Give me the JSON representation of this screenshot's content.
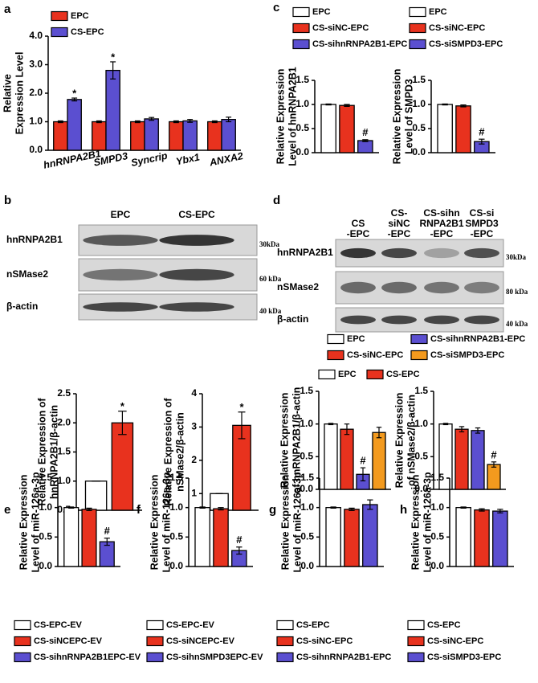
{
  "panel_letters": [
    "a",
    "b",
    "c",
    "d",
    "e",
    "f",
    "g",
    "h"
  ],
  "blots": [
    {
      "lanes": [
        [
          "EPC"
        ],
        [
          "CS-EPC"
        ]
      ],
      "rows": [
        {
          "label": "hnRNPA2B1",
          "marker": "30kDa"
        },
        {
          "label": "nSMase2",
          "marker": "60 kDa"
        },
        {
          "label": "β-actin",
          "marker": "40 kDa"
        }
      ]
    },
    {
      "lanes": [
        [
          "CS",
          "-EPC"
        ],
        [
          "CS-",
          "siNC",
          "-EPC"
        ],
        [
          "CS-sihn",
          "RNPA2B1",
          "-EPC"
        ],
        [
          "CS-si",
          "SMPD3",
          "-EPC"
        ]
      ],
      "rows": [
        {
          "label": "hnRNPA2B1",
          "marker": "30kDa"
        },
        {
          "label": "nSMase2",
          "marker": "80 kDa"
        },
        {
          "label": "β-actin",
          "marker": "40 kDa"
        }
      ]
    }
  ],
  "chart_data": [
    {
      "type": "bar",
      "ylabel": [
        "Relative",
        "Expression Level"
      ],
      "categories": [
        "hnRNPA2B1",
        "SMPD3",
        "Syncrip",
        "Ybx1",
        "ANXA2"
      ],
      "series": [
        {
          "name": "EPC",
          "color": "#e8321e",
          "values": [
            1.0,
            1.0,
            1.0,
            1.0,
            1.0
          ],
          "errors": [
            0.03,
            0.03,
            0.03,
            0.03,
            0.03
          ]
        },
        {
          "name": "CS-EPC",
          "color": "#5b4fd0",
          "values": [
            1.78,
            2.8,
            1.1,
            1.03,
            1.08
          ],
          "errors": [
            0.05,
            0.3,
            0.05,
            0.05,
            0.08
          ],
          "annotations": [
            "*",
            "*",
            null,
            null,
            null
          ]
        }
      ],
      "ylim": [
        0,
        4
      ],
      "yticks": [
        {
          "value": 0,
          "label": "0.0"
        },
        {
          "value": 1,
          "label": "1.0"
        },
        {
          "value": 2,
          "label": "2.0"
        },
        {
          "value": 3,
          "label": "3.0"
        },
        {
          "value": 4,
          "label": "4.0"
        }
      ]
    },
    {
      "type": "bar",
      "ylabel": [
        "Relative Expression of",
        "hnRNPA2B1/β-actin"
      ],
      "series": [
        {
          "name": "EPC",
          "color": "#ffffff",
          "values": [
            1.0
          ],
          "errors": [
            0
          ]
        },
        {
          "name": "CS-EPC",
          "color": "#e8321e",
          "values": [
            2.0
          ],
          "errors": [
            0.2
          ],
          "annotations": [
            "*"
          ]
        }
      ],
      "ylim": [
        0.5,
        2.5
      ],
      "yticks": [
        0.5,
        {
          "value": 1,
          "label": "1.0"
        },
        1.5,
        {
          "value": 2,
          "label": "2.0"
        },
        2.5
      ]
    },
    {
      "type": "bar",
      "ylabel": [
        "Relative Expression of",
        "nSMase2/β-actin"
      ],
      "series": [
        {
          "color": "#ffffff",
          "values": [
            1.0
          ],
          "errors": [
            0
          ]
        },
        {
          "color": "#e8321e",
          "values": [
            3.05
          ],
          "errors": [
            0.4
          ],
          "annotations": [
            "*"
          ]
        }
      ],
      "ylim": [
        0.5,
        4
      ],
      "yticks": [
        1,
        2,
        3,
        4
      ]
    },
    {
      "type": "bar",
      "ylabel": [
        "Relative Expression",
        "Level of hnRNPA2B1"
      ],
      "series": [
        {
          "name": "EPC",
          "color": "#ffffff",
          "values": [
            1.0
          ],
          "errors": [
            0.01
          ]
        },
        {
          "name": "CS-siNC-EPC",
          "color": "#e8321e",
          "values": [
            0.98
          ],
          "errors": [
            0.02
          ]
        },
        {
          "name": "CS-sihnRNPA2B1-EPC",
          "color": "#5b4fd0",
          "values": [
            0.25
          ],
          "errors": [
            0.02
          ],
          "annotations": [
            "#"
          ]
        }
      ],
      "ylim": [
        0,
        1.5
      ],
      "yticks": [
        {
          "value": 0,
          "label": "0.0"
        },
        0.5,
        {
          "value": 1,
          "label": "1.0"
        },
        1.5
      ]
    },
    {
      "type": "bar",
      "ylabel": [
        "Relative Expression",
        "Level of SMPD3"
      ],
      "series": [
        {
          "name": "EPC",
          "color": "#ffffff",
          "values": [
            1.0
          ],
          "errors": [
            0.01
          ]
        },
        {
          "name": "CS-siNC-EPC",
          "color": "#e8321e",
          "values": [
            0.97
          ],
          "errors": [
            0.02
          ]
        },
        {
          "name": "CS-siSMPD3-EPC",
          "color": "#5b4fd0",
          "values": [
            0.23
          ],
          "errors": [
            0.05
          ],
          "annotations": [
            "#"
          ]
        }
      ],
      "ylim": [
        0,
        1.5
      ],
      "yticks": [
        {
          "value": 0,
          "label": "0.0"
        },
        0.5,
        {
          "value": 1,
          "label": "1.0"
        },
        1.5
      ]
    },
    {
      "type": "bar",
      "ylabel": [
        "Relative Expression",
        "of hnRNPA2B1/β-actin"
      ],
      "series": [
        {
          "name": "EPC",
          "color": "#ffffff",
          "values": [
            1.0
          ],
          "errors": [
            0.01
          ]
        },
        {
          "name": "CS-siNC-EPC",
          "color": "#e8321e",
          "values": [
            0.92
          ],
          "errors": [
            0.08
          ]
        },
        {
          "name": "CS-sihnRNPA2B1-EPC",
          "color": "#5b4fd0",
          "values": [
            0.23
          ],
          "errors": [
            0.1
          ],
          "annotations": [
            "#"
          ]
        },
        {
          "name": "CS-siSMPD3-EPC",
          "color": "#f39a1e",
          "values": [
            0.87
          ],
          "errors": [
            0.08
          ]
        }
      ],
      "ylim": [
        0,
        1.5
      ],
      "yticks": [
        {
          "value": 0,
          "label": "0.0"
        },
        0.5,
        {
          "value": 1,
          "label": "1.0"
        },
        1.5
      ]
    },
    {
      "type": "bar",
      "ylabel": [
        "Relative Expression",
        "of nSMase2/β-actin"
      ],
      "series": [
        {
          "color": "#ffffff",
          "values": [
            1.0
          ],
          "errors": [
            0.01
          ]
        },
        {
          "color": "#e8321e",
          "values": [
            0.92
          ],
          "errors": [
            0.04
          ]
        },
        {
          "color": "#5b4fd0",
          "values": [
            0.9
          ],
          "errors": [
            0.04
          ]
        },
        {
          "color": "#f39a1e",
          "values": [
            0.38
          ],
          "errors": [
            0.04
          ],
          "annotations": [
            "#"
          ]
        }
      ],
      "ylim": [
        0,
        1.5
      ],
      "yticks": [
        {
          "value": 0,
          "label": "0.0"
        },
        0.5,
        {
          "value": 1,
          "label": "1.0"
        },
        1.5
      ]
    },
    {
      "type": "bar",
      "ylabel": [
        "Relative Expression",
        "Level of miR-126a-3p"
      ],
      "series": [
        {
          "name": "CS-EPC-EV",
          "color": "#ffffff",
          "values": [
            1.0
          ],
          "errors": [
            0.01
          ]
        },
        {
          "name": "CS-siNCEPC-EV",
          "color": "#e8321e",
          "values": [
            0.97
          ],
          "errors": [
            0.02
          ]
        },
        {
          "name": "CS-sihnRNPA2B1EPC-EV",
          "color": "#5b4fd0",
          "values": [
            0.42
          ],
          "errors": [
            0.06
          ],
          "annotations": [
            "#"
          ]
        }
      ],
      "ylim": [
        0,
        1.5
      ],
      "yticks": [
        {
          "value": 0,
          "label": "0.0"
        },
        0.5,
        {
          "value": 1,
          "label": "1.0"
        },
        1.5
      ]
    },
    {
      "type": "bar",
      "ylabel": [
        "Relative Expression",
        "Level of miR-126a-3p"
      ],
      "series": [
        {
          "name": "CS-EPC-EV",
          "color": "#ffffff",
          "values": [
            1.0
          ],
          "errors": [
            0.01
          ]
        },
        {
          "name": "CS-siNCEPC-EV",
          "color": "#e8321e",
          "values": [
            0.98
          ],
          "errors": [
            0.02
          ]
        },
        {
          "name": "CS-sihnSMPD3EPC-EV",
          "color": "#5b4fd0",
          "values": [
            0.27
          ],
          "errors": [
            0.06
          ],
          "annotations": [
            "#"
          ]
        }
      ],
      "ylim": [
        0,
        1.5
      ],
      "yticks": [
        {
          "value": 0,
          "label": "0.0"
        },
        0.5,
        {
          "value": 1,
          "label": "1.0"
        },
        1.5
      ]
    },
    {
      "type": "bar",
      "ylabel": [
        "Relative Expression",
        "Level of miR-126a-3p"
      ],
      "series": [
        {
          "name": "CS-EPC",
          "color": "#ffffff",
          "values": [
            1.0
          ],
          "errors": [
            0.01
          ]
        },
        {
          "name": "CS-siNC-EPC",
          "color": "#e8321e",
          "values": [
            0.97
          ],
          "errors": [
            0.02
          ]
        },
        {
          "name": "CS-sihnRNPA2B1-EPC",
          "color": "#5b4fd0",
          "values": [
            1.05
          ],
          "errors": [
            0.08
          ]
        }
      ],
      "ylim": [
        0,
        1.5
      ],
      "yticks": [
        {
          "value": 0,
          "label": "0.0"
        },
        0.5,
        {
          "value": 1,
          "label": "1.0"
        },
        1.5
      ]
    },
    {
      "type": "bar",
      "ylabel": [
        "Relative Expression",
        "Level of miR-126a-3p"
      ],
      "series": [
        {
          "name": "CS-EPC",
          "color": "#ffffff",
          "values": [
            1.0
          ],
          "errors": [
            0.01
          ]
        },
        {
          "name": "CS-siNC-EPC",
          "color": "#e8321e",
          "values": [
            0.96
          ],
          "errors": [
            0.02
          ]
        },
        {
          "name": "CS-siSMPD3-EPC",
          "color": "#5b4fd0",
          "values": [
            0.94
          ],
          "errors": [
            0.03
          ]
        }
      ],
      "ylim": [
        0,
        1.5
      ],
      "yticks": [
        {
          "value": 0,
          "label": "0.0"
        },
        0.5,
        {
          "value": 1,
          "label": "1.0"
        },
        1.5
      ]
    }
  ]
}
